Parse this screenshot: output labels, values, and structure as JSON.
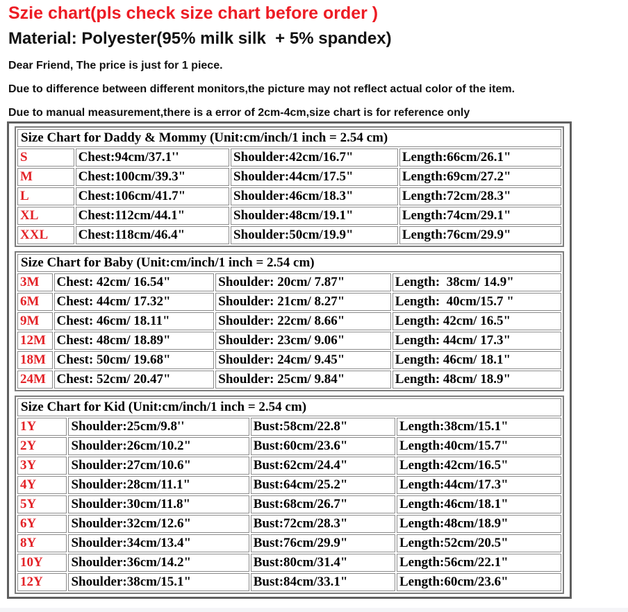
{
  "page": {
    "title": "Szie chart(pls check size chart before order )",
    "material": "Material: Polyester(95% milk silk  + 5% spandex)",
    "notes": [
      "Dear Friend, The price is just for 1 piece.",
      "Due to difference between different monitors,the picture may not reflect actual color of the item.",
      "Due to manual measurement,there is a error of 2cm-4cm,size chart is for reference only"
    ],
    "colors": {
      "title_red": "#ed1c24",
      "size_label_red": "#e32227",
      "table_border_gray": "#7d7d7d",
      "outer_border_gray": "#5f5f5f",
      "text_black": "#000000"
    }
  },
  "tables": [
    {
      "header": "Size Chart for Daddy & Mommy (Unit:cm/inch/1 inch = 2.54 cm)",
      "rows": [
        [
          "S",
          "Chest:94cm/37.1''",
          "Shoulder:42cm/16.7\"",
          "Length:66cm/26.1\""
        ],
        [
          "M",
          "Chest:100cm/39.3\"",
          "Shoulder:44cm/17.5\"",
          "Length:69cm/27.2\""
        ],
        [
          "L",
          "Chest:106cm/41.7\"",
          "Shoulder:46cm/18.3\"",
          "Length:72cm/28.3\""
        ],
        [
          "XL",
          "Chest:112cm/44.1\"",
          "Shoulder:48cm/19.1\"",
          "Length:74cm/29.1\""
        ],
        [
          "XXL",
          "Chest:118cm/46.4\"",
          "Shoulder:50cm/19.9\"",
          "Length:76cm/29.9\""
        ]
      ]
    },
    {
      "header": "Size Chart for Baby (Unit:cm/inch/1 inch = 2.54 cm)",
      "rows": [
        [
          "3M",
          "Chest: 42cm/ 16.54\"",
          "Shoulder: 20cm/ 7.87\"",
          "Length:  38cm/ 14.9\""
        ],
        [
          "6M",
          "Chest: 44cm/ 17.32\"",
          "Shoulder: 21cm/ 8.27\"",
          "Length:  40cm/15.7 \""
        ],
        [
          "9M",
          "Chest: 46cm/ 18.11\"",
          "Shoulder: 22cm/ 8.66\"",
          "Length: 42cm/ 16.5\""
        ],
        [
          "12M",
          "Chest: 48cm/ 18.89\"",
          "Shoulder: 23cm/ 9.06\"",
          "Length: 44cm/ 17.3\""
        ],
        [
          "18M",
          "Chest: 50cm/ 19.68\"",
          "Shoulder: 24cm/ 9.45\"",
          "Length: 46cm/ 18.1\""
        ],
        [
          "24M",
          "Chest: 52cm/ 20.47\"",
          "Shoulder: 25cm/ 9.84\"",
          "Length: 48cm/ 18.9\""
        ]
      ]
    },
    {
      "header": "Size Chart for Kid (Unit:cm/inch/1 inch = 2.54 cm)",
      "rows": [
        [
          "1Y",
          "Shoulder:25cm/9.8''",
          "Bust:58cm/22.8\"",
          "Length:38cm/15.1\""
        ],
        [
          "2Y",
          "Shoulder:26cm/10.2\"",
          "Bust:60cm/23.6\"",
          "Length:40cm/15.7\""
        ],
        [
          "3Y",
          "Shoulder:27cm/10.6\"",
          "Bust:62cm/24.4\"",
          "Length:42cm/16.5\""
        ],
        [
          "4Y",
          "Shoulder:28cm/11.1\"",
          "Bust:64cm/25.2\"",
          "Length:44cm/17.3\""
        ],
        [
          "5Y",
          "Shoulder:30cm/11.8\"",
          "Bust:68cm/26.7\"",
          "Length:46cm/18.1\""
        ],
        [
          "6Y",
          "Shoulder:32cm/12.6\"",
          "Bust:72cm/28.3\"",
          "Length:48cm/18.9\""
        ],
        [
          "8Y",
          "Shoulder:34cm/13.4\"",
          "Bust:76cm/29.9\"",
          "Length:52cm/20.5\""
        ],
        [
          "10Y",
          "Shoulder:36cm/14.2\"",
          "Bust:80cm/31.4\"",
          "Length:56cm/22.1\""
        ],
        [
          "12Y",
          "Shoulder:38cm/15.1\"",
          "Bust:84cm/33.1\"",
          "Length:60cm/23.6\""
        ]
      ]
    }
  ]
}
